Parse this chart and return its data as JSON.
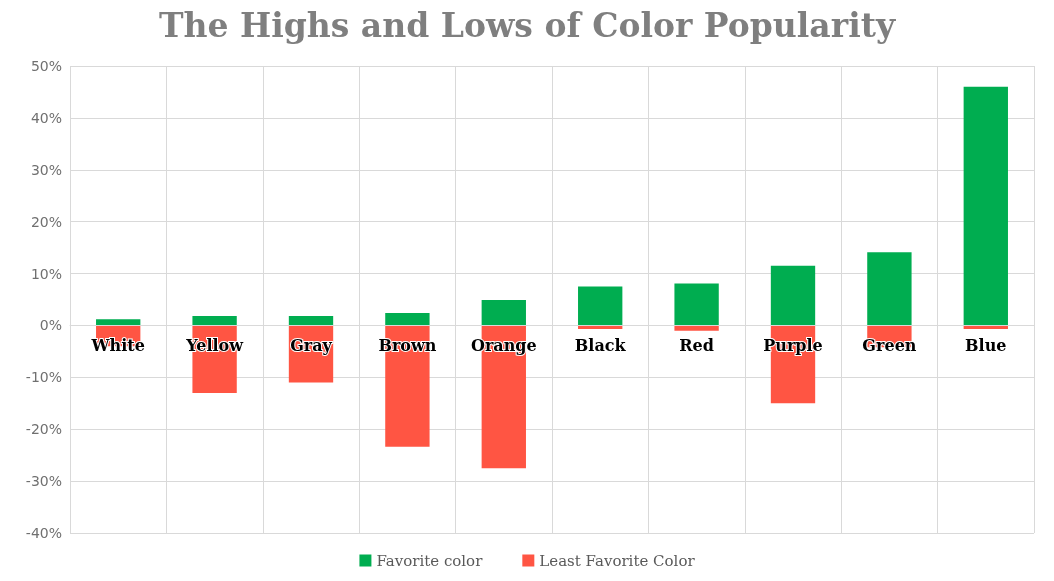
{
  "chart_data": {
    "type": "bar",
    "title": "The Highs and Lows of Color Popularity",
    "stacked": true,
    "categories": [
      "White",
      "Yellow",
      "Gray",
      "Brown",
      "Orange",
      "Black",
      "Red",
      "Purple",
      "Green",
      "Blue"
    ],
    "series": [
      {
        "name": "Favorite color",
        "color": "#00ad50",
        "values": [
          1.2,
          1.8,
          1.8,
          2.4,
          4.9,
          7.5,
          8.1,
          11.5,
          14.1,
          46
        ]
      },
      {
        "name": "Least Favorite Color",
        "color": "#ff5543",
        "values": [
          -4,
          -13,
          -11,
          -23.4,
          -27.5,
          -0.7,
          -1,
          -15,
          -4.2,
          -0.7
        ]
      }
    ],
    "ylim": [
      -40,
      50
    ],
    "yticks": [
      {
        "value": -40,
        "label": "-40%"
      },
      {
        "value": -30,
        "label": "-30%"
      },
      {
        "value": -20,
        "label": "-20%"
      },
      {
        "value": -10,
        "label": "-10%"
      },
      {
        "value": 0,
        "label": "0%"
      },
      {
        "value": 10,
        "label": "10%"
      },
      {
        "value": 20,
        "label": "20%"
      },
      {
        "value": 30,
        "label": "30%"
      },
      {
        "value": 40,
        "label": "40%"
      },
      {
        "value": 50,
        "label": "50%"
      }
    ],
    "grid": true,
    "legend": "bottom"
  }
}
